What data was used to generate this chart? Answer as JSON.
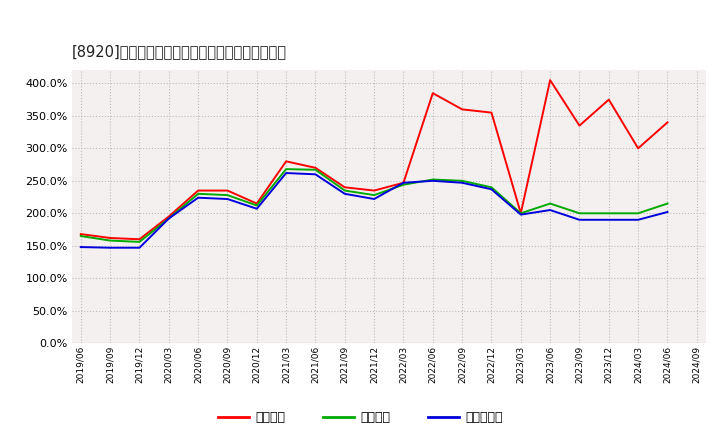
{
  "title": "[8920]　流動比率、当座比率、現預金比率の推移",
  "dates": [
    "2019/06",
    "2019/09",
    "2019/12",
    "2020/03",
    "2020/06",
    "2020/09",
    "2020/12",
    "2021/03",
    "2021/06",
    "2021/09",
    "2021/12",
    "2022/03",
    "2022/06",
    "2022/09",
    "2022/12",
    "2023/03",
    "2023/06",
    "2023/09",
    "2023/12",
    "2024/03",
    "2024/06",
    "2024/09"
  ],
  "ryudo": [
    168,
    162,
    160,
    195,
    235,
    235,
    215,
    280,
    270,
    240,
    235,
    247,
    385,
    360,
    355,
    200,
    405,
    335,
    375,
    300,
    340,
    null
  ],
  "toza": [
    165,
    158,
    156,
    192,
    230,
    228,
    212,
    268,
    267,
    235,
    228,
    244,
    252,
    250,
    240,
    200,
    215,
    200,
    200,
    200,
    215,
    null
  ],
  "genyo": [
    148,
    147,
    147,
    192,
    224,
    222,
    207,
    262,
    260,
    230,
    222,
    247,
    250,
    247,
    237,
    198,
    205,
    190,
    190,
    190,
    202,
    null
  ],
  "ryudo_color": "#ff0000",
  "toza_color": "#00aa00",
  "genyo_color": "#0000dd",
  "bg_color": "#ffffff",
  "plot_bg_color": "#f5f0f0",
  "grid_color": "#bbbbbb",
  "ylim": [
    0,
    420
  ],
  "yticks": [
    0,
    50,
    100,
    150,
    200,
    250,
    300,
    350,
    400
  ],
  "legend_labels": [
    "流動比率",
    "当座比率",
    "現預金比率"
  ],
  "linewidth": 1.4
}
